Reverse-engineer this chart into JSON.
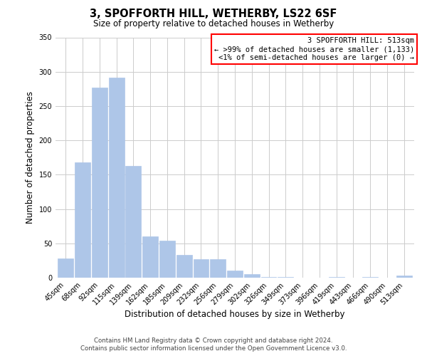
{
  "title": "3, SPOFFORTH HILL, WETHERBY, LS22 6SF",
  "subtitle": "Size of property relative to detached houses in Wetherby",
  "xlabel": "Distribution of detached houses by size in Wetherby",
  "ylabel": "Number of detached properties",
  "categories": [
    "45sqm",
    "68sqm",
    "92sqm",
    "115sqm",
    "139sqm",
    "162sqm",
    "185sqm",
    "209sqm",
    "232sqm",
    "256sqm",
    "279sqm",
    "302sqm",
    "326sqm",
    "349sqm",
    "373sqm",
    "396sqm",
    "419sqm",
    "443sqm",
    "466sqm",
    "490sqm",
    "513sqm"
  ],
  "values": [
    28,
    168,
    277,
    291,
    163,
    60,
    54,
    33,
    27,
    27,
    10,
    5,
    1,
    1,
    0,
    0,
    1,
    0,
    1,
    0,
    3
  ],
  "bar_color": "#aec6e8",
  "ylim": [
    0,
    350
  ],
  "yticks": [
    0,
    50,
    100,
    150,
    200,
    250,
    300,
    350
  ],
  "legend_title": "3 SPOFFORTH HILL: 513sqm",
  "legend_line1": "← >99% of detached houses are smaller (1,133)",
  "legend_line2": "<1% of semi-detached houses are larger (0) →",
  "footer_line1": "Contains HM Land Registry data © Crown copyright and database right 2024.",
  "footer_line2": "Contains public sector information licensed under the Open Government Licence v3.0.",
  "bg_color": "#ffffff",
  "grid_color": "#cccccc"
}
